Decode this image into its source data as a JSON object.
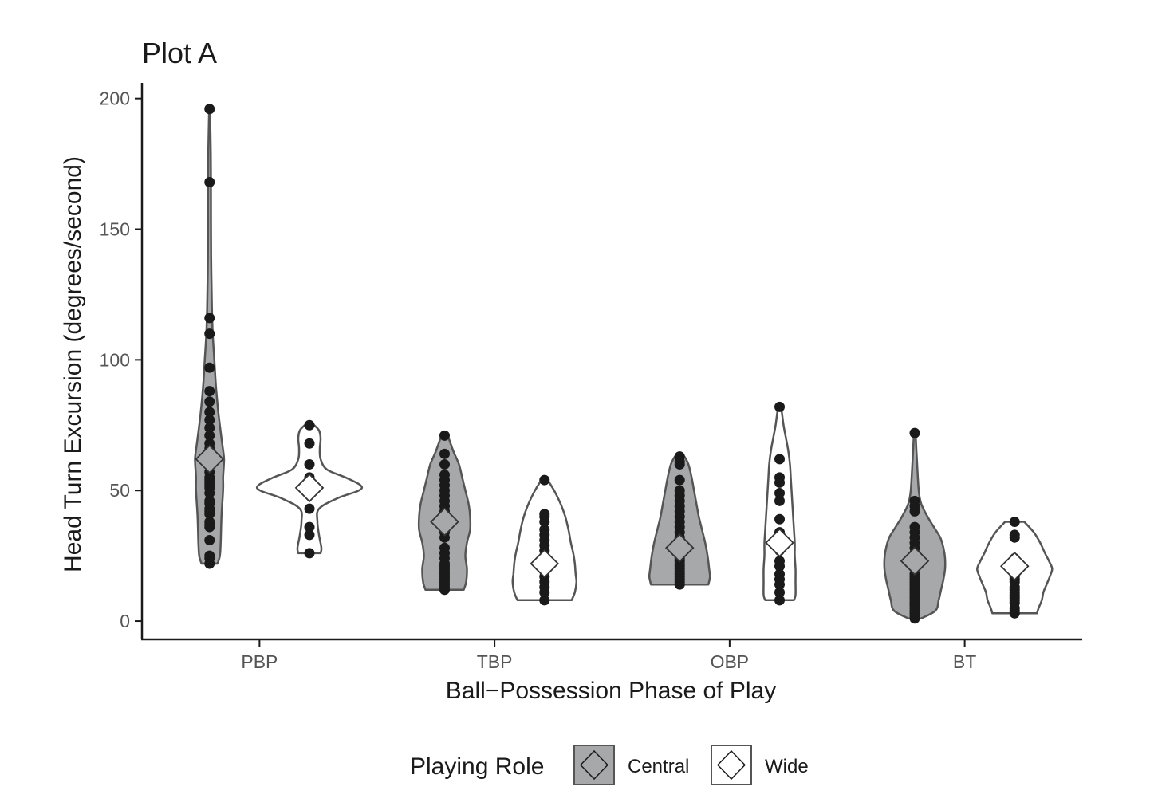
{
  "chart_data": {
    "type": "violin",
    "title": "Plot A",
    "xlabel": "Ball−Possession Phase of Play",
    "ylabel": "Head Turn Excursion (degrees/second)",
    "ylim": [
      -7,
      206
    ],
    "yticks": [
      0,
      50,
      100,
      150,
      200
    ],
    "categories": [
      "PBP",
      "TBP",
      "OBP",
      "BT"
    ],
    "grid": false,
    "legend": {
      "title": "Playing Role",
      "position": "bottom",
      "entries": [
        "Central",
        "Wide"
      ]
    },
    "colors": {
      "Central": "#a6a8aa",
      "Wide": "#ffffff",
      "outline": "#555555",
      "points": "#1a1a1a"
    },
    "groups": [
      {
        "category": "PBP",
        "role": "Central",
        "mean": 62,
        "min": 22,
        "max": 196,
        "density": [
          [
            22,
            10
          ],
          [
            25,
            13
          ],
          [
            30,
            14
          ],
          [
            40,
            15
          ],
          [
            50,
            17
          ],
          [
            55,
            17
          ],
          [
            60,
            18
          ],
          [
            63,
            18
          ],
          [
            70,
            15
          ],
          [
            80,
            11
          ],
          [
            90,
            8
          ],
          [
            100,
            6
          ],
          [
            110,
            4
          ],
          [
            120,
            3
          ],
          [
            140,
            2
          ],
          [
            160,
            1.8
          ],
          [
            180,
            1.5
          ],
          [
            196,
            0.5
          ]
        ],
        "points": [
          22,
          24,
          25,
          31,
          36,
          37,
          38,
          41,
          42,
          43,
          45,
          46,
          49,
          51,
          52,
          53,
          54,
          55,
          57,
          60,
          62,
          64,
          66,
          68,
          71,
          74,
          77,
          80,
          84,
          88,
          97,
          110,
          116,
          168,
          196
        ]
      },
      {
        "category": "PBP",
        "role": "Wide",
        "mean": 51,
        "min": 26,
        "max": 75,
        "density": [
          [
            26,
            14
          ],
          [
            28,
            15
          ],
          [
            33,
            12
          ],
          [
            38,
            10
          ],
          [
            43,
            12
          ],
          [
            47,
            35
          ],
          [
            50,
            62
          ],
          [
            52,
            64
          ],
          [
            55,
            45
          ],
          [
            58,
            22
          ],
          [
            62,
            14
          ],
          [
            66,
            13
          ],
          [
            70,
            14
          ],
          [
            73,
            12
          ],
          [
            75,
            6
          ]
        ],
        "points": [
          26,
          33,
          36,
          43,
          50,
          55,
          60,
          68,
          75
        ]
      },
      {
        "category": "TBP",
        "role": "Central",
        "mean": 38,
        "min": 12,
        "max": 71,
        "density": [
          [
            12,
            24
          ],
          [
            15,
            27
          ],
          [
            20,
            28
          ],
          [
            25,
            26
          ],
          [
            30,
            28
          ],
          [
            35,
            32
          ],
          [
            40,
            32
          ],
          [
            45,
            30
          ],
          [
            50,
            26
          ],
          [
            55,
            22
          ],
          [
            60,
            18
          ],
          [
            65,
            11
          ],
          [
            71,
            4
          ]
        ],
        "points": [
          12,
          13,
          14,
          15,
          16,
          17,
          18,
          19,
          20,
          21,
          22,
          24,
          26,
          28,
          32,
          34,
          36,
          38,
          40,
          42,
          44,
          46,
          48,
          50,
          52,
          54,
          56,
          60,
          64,
          71
        ]
      },
      {
        "category": "TBP",
        "role": "Wide",
        "mean": 22,
        "min": 8,
        "max": 54,
        "density": [
          [
            8,
            34
          ],
          [
            11,
            38
          ],
          [
            15,
            40
          ],
          [
            18,
            39
          ],
          [
            22,
            38
          ],
          [
            26,
            36
          ],
          [
            30,
            33
          ],
          [
            35,
            30
          ],
          [
            40,
            26
          ],
          [
            45,
            20
          ],
          [
            50,
            12
          ],
          [
            54,
            4
          ]
        ],
        "points": [
          8,
          11,
          13,
          15,
          17,
          19,
          21,
          23,
          25,
          27,
          29,
          31,
          33,
          35,
          38,
          40,
          41,
          54
        ]
      },
      {
        "category": "OBP",
        "role": "Central",
        "mean": 28,
        "min": 14,
        "max": 63,
        "density": [
          [
            14,
            36
          ],
          [
            17,
            38
          ],
          [
            20,
            37
          ],
          [
            25,
            35
          ],
          [
            30,
            32
          ],
          [
            35,
            28
          ],
          [
            40,
            24
          ],
          [
            45,
            21
          ],
          [
            50,
            18
          ],
          [
            55,
            15
          ],
          [
            60,
            11
          ],
          [
            63,
            6
          ]
        ],
        "points": [
          14,
          15,
          16,
          17,
          18,
          19,
          20,
          21,
          22,
          23,
          24,
          25,
          26,
          27,
          28,
          29,
          30,
          31,
          32,
          34,
          36,
          38,
          40,
          42,
          44,
          46,
          48,
          50,
          54,
          60,
          61,
          63
        ]
      },
      {
        "category": "OBP",
        "role": "Wide",
        "mean": 30,
        "min": 8,
        "max": 82,
        "density": [
          [
            8,
            18
          ],
          [
            10,
            20
          ],
          [
            15,
            20
          ],
          [
            20,
            20
          ],
          [
            25,
            19
          ],
          [
            30,
            19
          ],
          [
            35,
            18
          ],
          [
            40,
            17
          ],
          [
            45,
            16
          ],
          [
            50,
            15
          ],
          [
            55,
            14
          ],
          [
            60,
            13
          ],
          [
            65,
            11
          ],
          [
            70,
            8
          ],
          [
            75,
            5
          ],
          [
            82,
            2
          ]
        ],
        "points": [
          8,
          11,
          14,
          16,
          18,
          21,
          23,
          27,
          30,
          34,
          39,
          46,
          49,
          53,
          55,
          62,
          82
        ]
      },
      {
        "category": "BT",
        "role": "Central",
        "mean": 23,
        "min": 1,
        "max": 72,
        "density": [
          [
            1,
            8
          ],
          [
            4,
            26
          ],
          [
            8,
            30
          ],
          [
            12,
            33
          ],
          [
            16,
            36
          ],
          [
            20,
            38
          ],
          [
            24,
            38
          ],
          [
            28,
            36
          ],
          [
            32,
            32
          ],
          [
            36,
            24
          ],
          [
            40,
            16
          ],
          [
            45,
            8
          ],
          [
            50,
            5
          ],
          [
            60,
            3
          ],
          [
            72,
            1
          ]
        ],
        "points": [
          1,
          2,
          3,
          4,
          5,
          6,
          7,
          8,
          9,
          10,
          11,
          12,
          13,
          14,
          15,
          16,
          17,
          18,
          20,
          22,
          24,
          26,
          28,
          30,
          32,
          34,
          36,
          42,
          44,
          46,
          72
        ]
      },
      {
        "category": "BT",
        "role": "Wide",
        "mean": 21,
        "min": 3,
        "max": 38,
        "density": [
          [
            3,
            28
          ],
          [
            5,
            30
          ],
          [
            8,
            34
          ],
          [
            11,
            36
          ],
          [
            14,
            40
          ],
          [
            17,
            44
          ],
          [
            20,
            47
          ],
          [
            23,
            43
          ],
          [
            26,
            38
          ],
          [
            30,
            32
          ],
          [
            34,
            24
          ],
          [
            38,
            12
          ]
        ],
        "points": [
          3,
          4,
          5,
          7,
          8,
          9,
          10,
          11,
          12,
          13,
          15,
          16,
          17,
          18,
          19,
          20,
          22,
          24,
          32,
          33,
          38
        ]
      }
    ]
  }
}
